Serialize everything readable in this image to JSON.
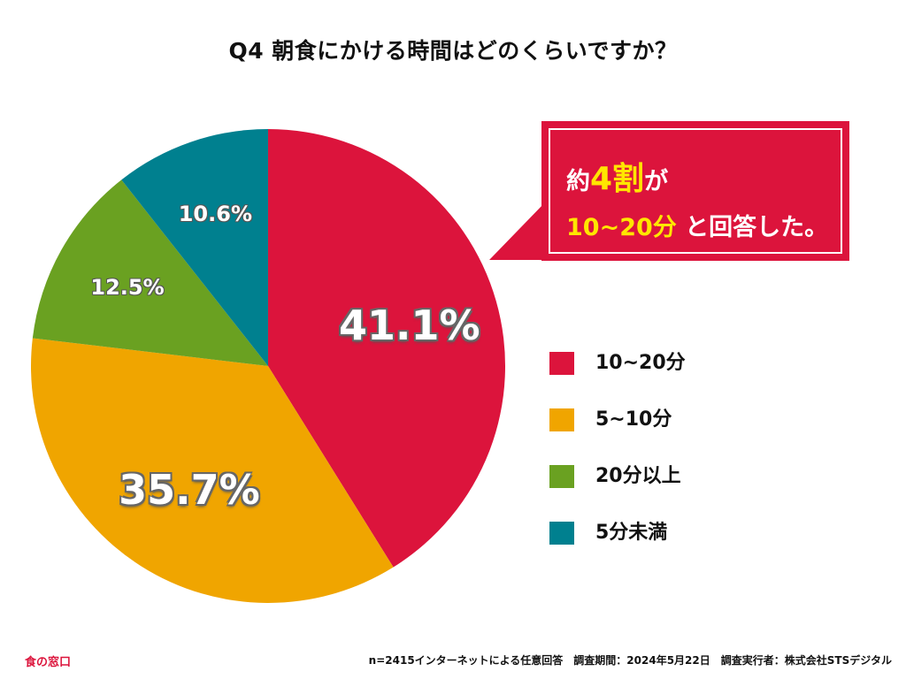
{
  "chart_data": {
    "type": "pie",
    "title": "Q4 朝食にかける時間はどのくらいですか？",
    "slices": [
      {
        "label": "10~20分",
        "value": 41.1,
        "display": "41.1%",
        "color": "#dc143c"
      },
      {
        "label": "5~10分",
        "value": 35.7,
        "display": "35.7%",
        "color": "#f0a500"
      },
      {
        "label": "20分以上",
        "value": 12.5,
        "display": "12.5%",
        "color": "#6aa121"
      },
      {
        "label": "5分未満",
        "value": 10.6,
        "display": "10.6%",
        "color": "#00808f"
      }
    ],
    "legend_position": "right"
  },
  "callout": {
    "line1_a": "約",
    "line1_b": "4割",
    "line1_c": "が",
    "line2_a": "10~20分",
    "line2_b": " と回答した。"
  },
  "footer": {
    "brand": "食の窓口",
    "note": "n=2415インターネットによる任意回答　調査期間：2024年5月22日　調査実行者：株式会社STSデジタル"
  }
}
